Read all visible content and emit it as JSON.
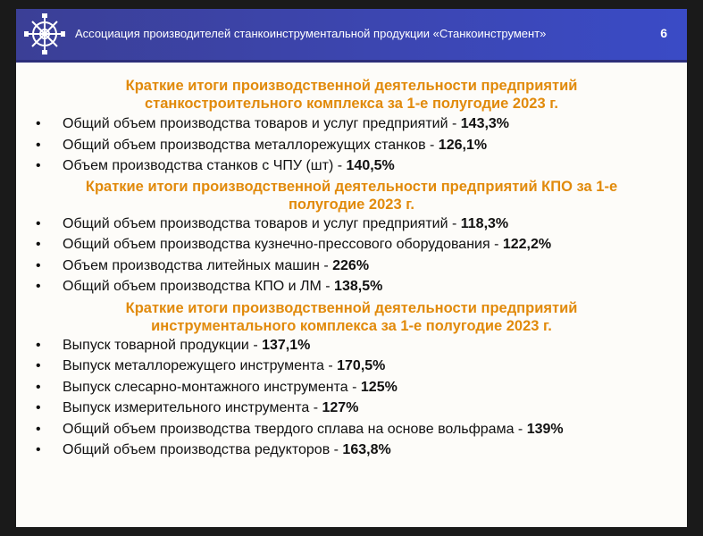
{
  "header": {
    "title": "Ассоциация производителей станкоинструментальной продукции «Станкоинструмент»",
    "page_number": "6",
    "logo_icon": "gear-logo-icon"
  },
  "sections": [
    {
      "title_line1": "Краткие итоги производственной деятельности предприятий",
      "title_line2": "станкостроительного комплекса за 1-е полугодие 2023 г.",
      "items": [
        {
          "label": "Общий объем производства товаров и услуг предприятий - ",
          "value": "143,3%"
        },
        {
          "label": "Общий объем производства металлорежущих станков - ",
          "value": "126,1%"
        },
        {
          "label": "Объем производства станков с ЧПУ (шт) - ",
          "value": "140,5%"
        }
      ]
    },
    {
      "title_line1": "Краткие итоги производственной деятельности предприятий КПО за 1-е",
      "title_line2": "полугодие 2023 г.",
      "items": [
        {
          "label": "Общий объем производства товаров и услуг предприятий - ",
          "value": "118,3%"
        },
        {
          "label": "Общий объем производства кузнечно-прессового оборудования - ",
          "value": "122,2%"
        },
        {
          "label": "Объем производства литейных машин - ",
          "value": "226%"
        },
        {
          "label": "Общий объем производства КПО и ЛМ - ",
          "value": "138,5%"
        }
      ]
    },
    {
      "title_line1": "Краткие итоги производственной деятельности предприятий",
      "title_line2": "инструментального комплекса за 1-е полугодие 2023 г.",
      "items": [
        {
          "label": "Выпуск товарной продукции  - ",
          "value": "137,1%"
        },
        {
          "label": "Выпуск металлорежущего инструмента - ",
          "value": "170,5%"
        },
        {
          "label": "Выпуск слесарно-монтажного инструмента - ",
          "value": "125%"
        },
        {
          "label": "Выпуск измерительного инструмента - ",
          "value": "127%"
        },
        {
          "label": "Общий объем производства твердого сплава на основе вольфрама - ",
          "value": "139%"
        },
        {
          "label": "Общий объем производства редукторов - ",
          "value": "163,8%"
        }
      ]
    }
  ]
}
